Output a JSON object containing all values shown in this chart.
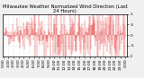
{
  "title": "Milwaukee Weather Normalized Wind Direction (Last 24 Hours)",
  "background_color": "#f0f0f0",
  "plot_bg_color": "#ffffff",
  "grid_color": "#cccccc",
  "bar_color": "#dd0000",
  "ylim": [
    -1.0,
    1.0
  ],
  "yticks": [
    1.0,
    0.5,
    0.0,
    -0.5,
    -1.0
  ],
  "ytick_labels": [
    "1",
    ".5",
    "0",
    "-.5",
    "-1"
  ],
  "n_points": 288,
  "seed": 42,
  "title_fontsize": 3.8,
  "tick_fontsize": 3.2,
  "n_xticks": 25
}
